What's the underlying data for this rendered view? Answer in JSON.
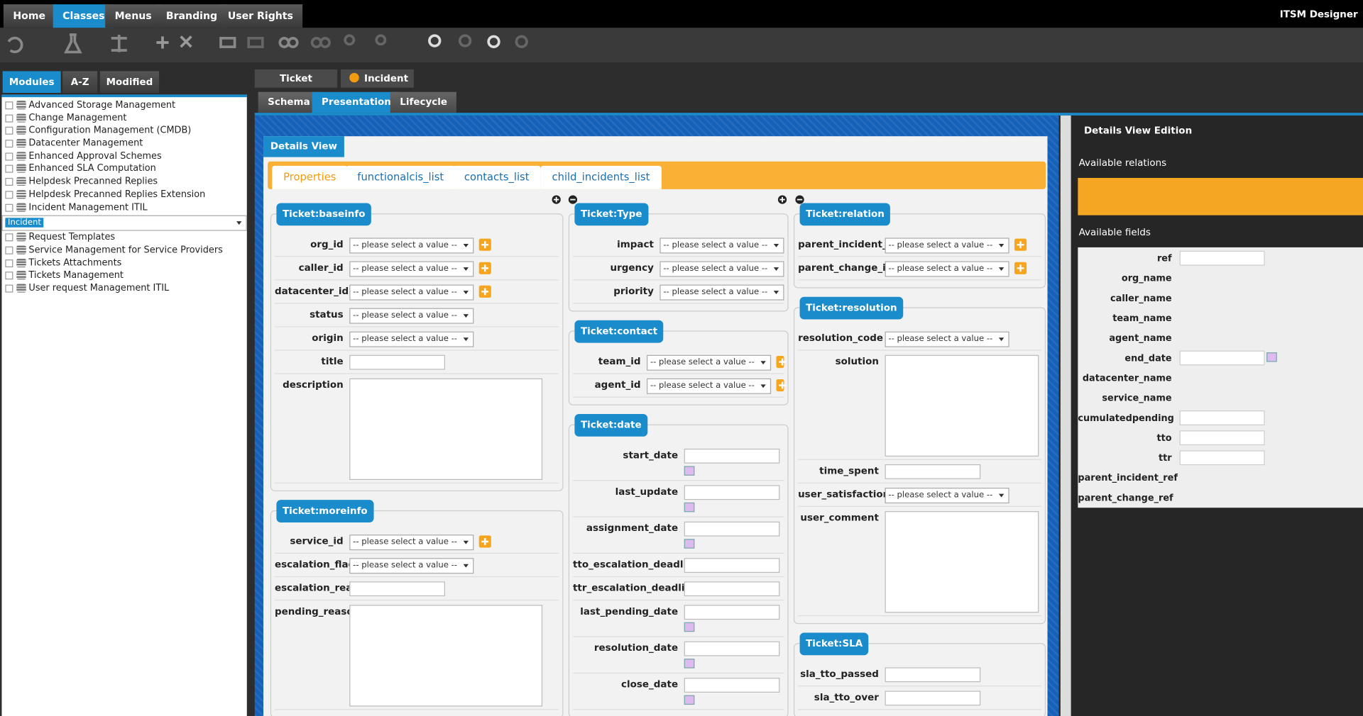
{
  "menu": {
    "items": [
      "Home",
      "Classes",
      "Menus",
      "Branding",
      "User Rights"
    ],
    "active": 1,
    "app_title": "ITSM Designer"
  },
  "left_tabs": {
    "items": [
      "Modules",
      "A-Z",
      "Modified"
    ],
    "active": 0
  },
  "modules": [
    "Advanced Storage Management",
    "Change Management",
    "Configuration Management (CMDB)",
    "Datacenter Management",
    "Enhanced Approval Schemes",
    "Enhanced SLA Computation",
    "Helpdesk Precanned Replies",
    "Helpdesk Precanned Replies Extension",
    "Incident Management ITIL",
    "Request Templates",
    "Service Management for Service Providers",
    "Tickets Attachments",
    "Tickets Management",
    "User request Management ITIL"
  ],
  "expanded_module": 8,
  "selected_class": "Incident",
  "breadcrumb": [
    "Ticket",
    "Incident"
  ],
  "tabs": {
    "items": [
      "Schema",
      "Presentation",
      "Lifecycle"
    ],
    "active": 1
  },
  "details_view": {
    "title": "Details View",
    "tabs": [
      "Properties",
      "functionalcis_list",
      "contacts_list",
      "child_incidents_list"
    ],
    "active": 0
  },
  "select_placeholder": "-- please select a value --",
  "columns": [
    [
      {
        "title": "Ticket:baseinfo",
        "fields": [
          {
            "label": "org_id",
            "kind": "select_plus"
          },
          {
            "label": "caller_id",
            "kind": "select_plus"
          },
          {
            "label": "datacenter_id",
            "kind": "select_plus"
          },
          {
            "label": "status",
            "kind": "select"
          },
          {
            "label": "origin",
            "kind": "select"
          },
          {
            "label": "title",
            "kind": "text"
          },
          {
            "label": "description",
            "kind": "textarea"
          }
        ]
      },
      {
        "title": "Ticket:moreinfo",
        "fields": [
          {
            "label": "service_id",
            "kind": "select_plus"
          },
          {
            "label": "escalation_flag",
            "kind": "select"
          },
          {
            "label": "escalation_reason",
            "kind": "text"
          },
          {
            "label": "pending_reason",
            "kind": "textarea"
          }
        ]
      }
    ],
    [
      {
        "title": "Ticket:Type",
        "fields": [
          {
            "label": "impact",
            "kind": "select"
          },
          {
            "label": "urgency",
            "kind": "select"
          },
          {
            "label": "priority",
            "kind": "select"
          }
        ]
      },
      {
        "title": "Ticket:contact",
        "fields": [
          {
            "label": "team_id",
            "kind": "select_plus"
          },
          {
            "label": "agent_id",
            "kind": "select_plus"
          }
        ]
      },
      {
        "title": "Ticket:date",
        "fields": [
          {
            "label": "start_date",
            "kind": "date"
          },
          {
            "label": "last_update",
            "kind": "date"
          },
          {
            "label": "assignment_date",
            "kind": "date"
          },
          {
            "label": "tto_escalation_deadline",
            "kind": "text"
          },
          {
            "label": "ttr_escalation_deadline",
            "kind": "text"
          },
          {
            "label": "last_pending_date",
            "kind": "date"
          },
          {
            "label": "resolution_date",
            "kind": "date"
          },
          {
            "label": "close_date",
            "kind": "date"
          }
        ]
      }
    ],
    [
      {
        "title": "Ticket:relation",
        "fields": [
          {
            "label": "parent_incident_id",
            "kind": "select_plus"
          },
          {
            "label": "parent_change_id",
            "kind": "select_plus"
          }
        ]
      },
      {
        "title": "Ticket:resolution",
        "fields": [
          {
            "label": "resolution_code",
            "kind": "select"
          },
          {
            "label": "solution",
            "kind": "textarea"
          },
          {
            "label": "time_spent",
            "kind": "text"
          },
          {
            "label": "user_satisfaction",
            "kind": "select"
          },
          {
            "label": "user_comment",
            "kind": "textarea"
          }
        ]
      },
      {
        "title": "Ticket:SLA",
        "fields": [
          {
            "label": "sla_tto_passed",
            "kind": "text"
          },
          {
            "label": "sla_tto_over",
            "kind": "text"
          }
        ]
      }
    ]
  ],
  "right_panel": {
    "title": "Details View Edition",
    "relations_label": "Available relations",
    "fields_label": "Available fields",
    "fields": [
      {
        "name": "ref",
        "input": "text"
      },
      {
        "name": "org_name",
        "input": "none"
      },
      {
        "name": "caller_name",
        "input": "none"
      },
      {
        "name": "team_name",
        "input": "none"
      },
      {
        "name": "agent_name",
        "input": "none"
      },
      {
        "name": "end_date",
        "input": "date"
      },
      {
        "name": "datacenter_name",
        "input": "none"
      },
      {
        "name": "service_name",
        "input": "none"
      },
      {
        "name": "cumulatedpending",
        "input": "text"
      },
      {
        "name": "tto",
        "input": "text"
      },
      {
        "name": "ttr",
        "input": "text"
      },
      {
        "name": "parent_incident_ref",
        "input": "none"
      },
      {
        "name": "parent_change_ref",
        "input": "none"
      }
    ]
  }
}
